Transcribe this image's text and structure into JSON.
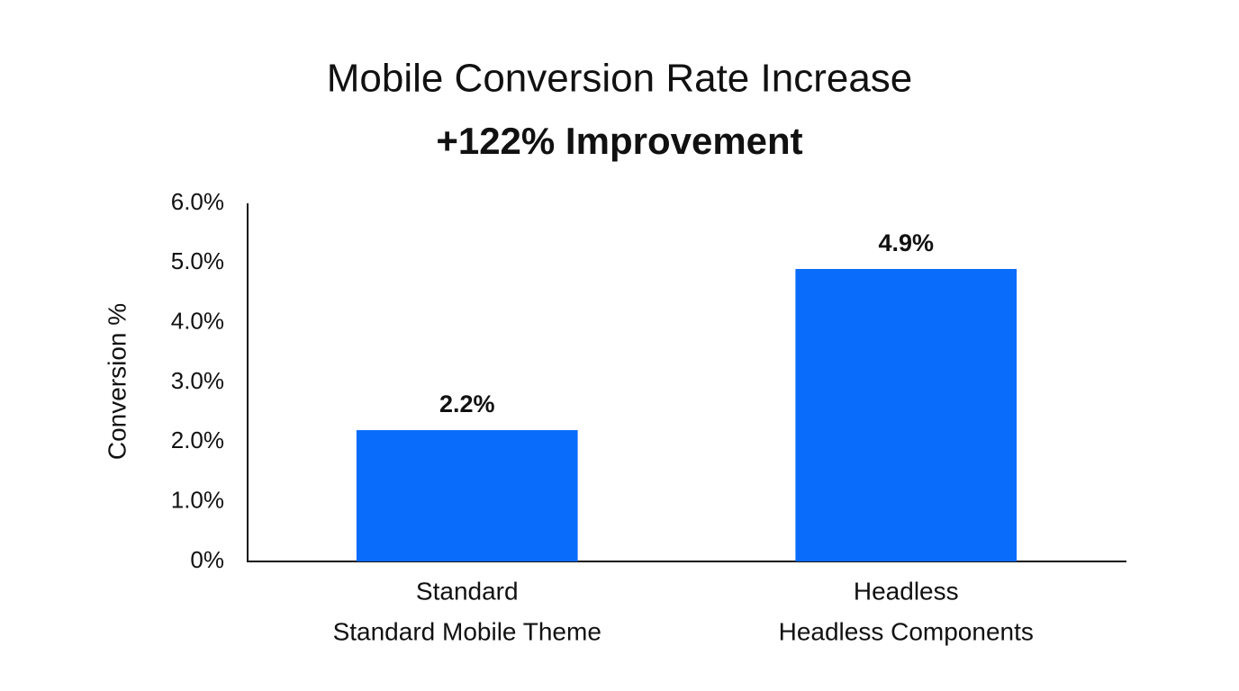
{
  "chart_data": {
    "type": "bar",
    "title": "Mobile Conversion Rate Increase",
    "subtitle": "+122% Improvement",
    "y_label": "Conversion %",
    "categories": [
      "Standard",
      "Headless"
    ],
    "category_descriptions": [
      "Standard Mobile Theme",
      "Headless Components"
    ],
    "values": [
      2.2,
      4.9
    ],
    "value_labels": [
      "2.2%",
      "4.9%"
    ],
    "color": "#0a6cfb",
    "ylim": [
      0,
      6
    ],
    "yticks": [
      {
        "value": 0,
        "label": "0%"
      },
      {
        "value": 1,
        "label": "1.0%"
      },
      {
        "value": 2,
        "label": "2.0%"
      },
      {
        "value": 3,
        "label": "3.0%"
      },
      {
        "value": 4,
        "label": "4.0%"
      },
      {
        "value": 5,
        "label": "5.0%"
      },
      {
        "value": 6,
        "label": "6.0%"
      }
    ],
    "grid": false
  }
}
